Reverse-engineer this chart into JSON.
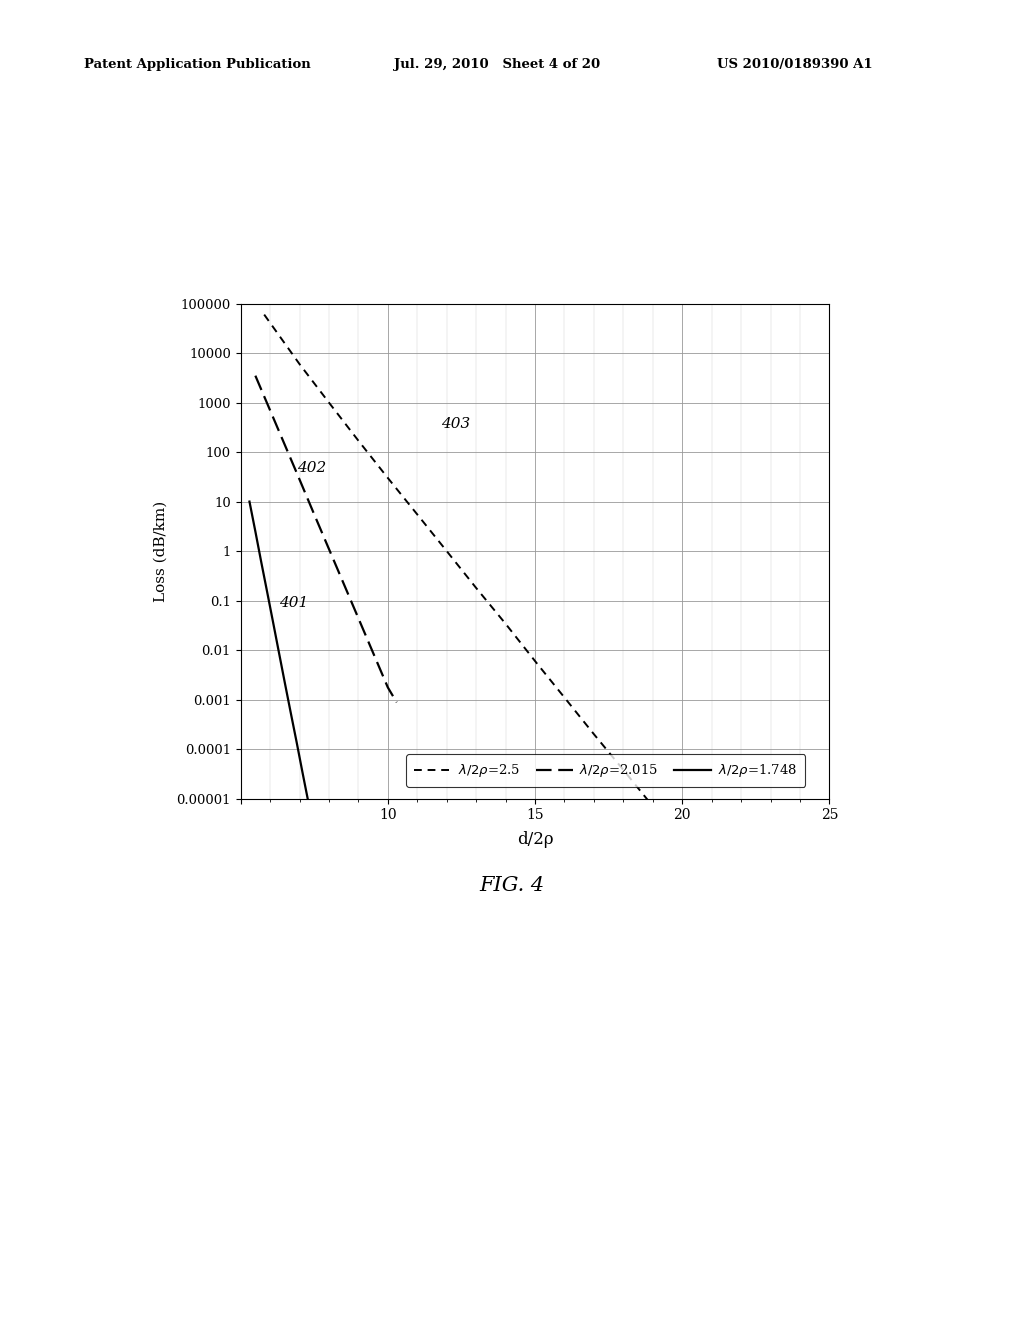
{
  "title": "",
  "xlabel": "d/2ρ",
  "ylabel": "Loss (dB/km)",
  "xlim": [
    5,
    25
  ],
  "ylim": [
    1e-05,
    100000.0
  ],
  "xticks": [
    10,
    15,
    20,
    25
  ],
  "header_left": "Patent Application Publication",
  "header_center": "Jul. 29, 2010   Sheet 4 of 20",
  "header_right": "US 2010/0189390 A1",
  "fig_label": "FIG. 4",
  "lines": [
    {
      "label": "λ/2ρ=2.5",
      "linestyle": "loosely_dotted",
      "color": "#000000",
      "lw": 1.4,
      "x": [
        5.8,
        7,
        8,
        9,
        10,
        11,
        12,
        13,
        14,
        15,
        16,
        17,
        18,
        19,
        19.8
      ],
      "y": [
        60000,
        6000,
        1000,
        170,
        30,
        5.5,
        1.0,
        0.18,
        0.034,
        0.006,
        0.0011,
        0.0002,
        3.8e-05,
        7e-06,
        1.5e-06
      ],
      "annotation": "403",
      "ann_x": 11.8,
      "ann_y": 300
    },
    {
      "label": "λ/2ρ=2.015",
      "linestyle": "dashed",
      "color": "#000000",
      "lw": 1.6,
      "x": [
        5.5,
        6,
        6.5,
        7,
        7.5,
        8,
        8.5,
        9,
        9.5,
        10,
        10.3
      ],
      "y": [
        3500,
        700,
        140,
        28,
        5.5,
        1.1,
        0.22,
        0.044,
        0.0088,
        0.00176,
        0.00088
      ],
      "annotation": "402",
      "ann_x": 6.9,
      "ann_y": 40
    },
    {
      "label": "λ/2ρ=1.748",
      "linestyle": "solid",
      "color": "#000000",
      "lw": 1.6,
      "x": [
        5.3,
        5.5,
        5.7,
        5.9,
        6.1,
        6.3,
        6.5,
        6.7,
        6.9,
        7.1,
        7.3,
        7.5,
        7.65
      ],
      "y": [
        10,
        2.5,
        0.6,
        0.15,
        0.037,
        0.009,
        0.0022,
        0.00055,
        0.00014,
        3.4e-05,
        8.5e-06,
        2.1e-06,
        8.5e-07
      ],
      "annotation": "401",
      "ann_x": 6.3,
      "ann_y": 0.075
    }
  ],
  "background_color": "#ffffff",
  "grid_color": "#999999",
  "ytick_labels": [
    "0.00001",
    "0.0001",
    "0.001",
    "0.01",
    "0.1",
    "1",
    "10",
    "100",
    "1000",
    "10000",
    "100000"
  ],
  "ytick_values": [
    1e-05,
    0.0001,
    0.001,
    0.01,
    0.1,
    1.0,
    10.0,
    100.0,
    1000.0,
    10000.0,
    100000.0
  ]
}
